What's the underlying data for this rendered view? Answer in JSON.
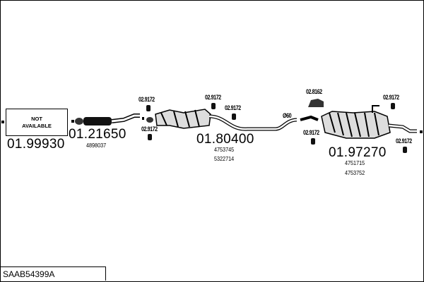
{
  "diagram_code": "SAAB54399A",
  "parts": [
    {
      "number": "01.99930",
      "label": "NOT AVAILABLE",
      "oem": []
    },
    {
      "number": "01.21650",
      "oem": [
        "4898037"
      ]
    },
    {
      "number": "01.80400",
      "oem": [
        "4753745",
        "5322714"
      ]
    },
    {
      "number": "01.97270",
      "oem": [
        "4751715",
        "4753752"
      ]
    }
  ],
  "na_label": [
    "NOT",
    "AVAILABLE"
  ],
  "mounts": {
    "m1": "02.9172",
    "m2": "02.9172",
    "m3": "02.9172",
    "m4": "02.9172",
    "m5": "02.9172",
    "m6": "02.9172",
    "m7": "02.9172",
    "clamp": "02.8162"
  },
  "pipe_diameter": "Ø60"
}
